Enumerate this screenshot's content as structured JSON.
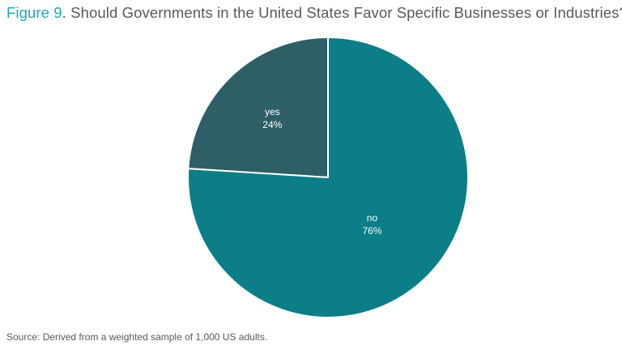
{
  "title": {
    "figure": "Figure 9",
    "separator": ".",
    "text": " Should Governments in the United States Favor Specific Businesses or Industries?"
  },
  "source": "Source: Derived from a weighted sample of 1,000 US adults.",
  "chart_data": {
    "type": "pie",
    "title": "Should Governments in the United States Favor Specific Businesses or Industries?",
    "slices": [
      {
        "label": "yes",
        "value": 24,
        "display": "24%",
        "color": "#2e5f66"
      },
      {
        "label": "no",
        "value": 76,
        "display": "76%",
        "color": "#0b7e87"
      }
    ],
    "start": "top, counter-clockwise for first slice",
    "legend": "none"
  }
}
